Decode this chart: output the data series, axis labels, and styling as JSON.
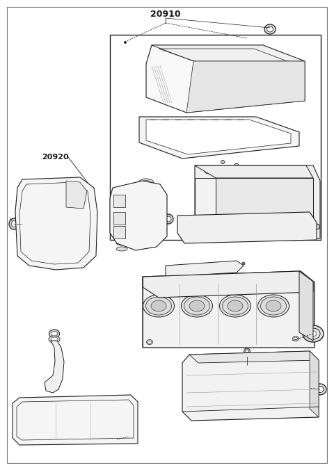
{
  "title": "20910",
  "label_20920": "20920",
  "bg_color": "#ffffff",
  "line_color": "#1a1a1a",
  "fig_width": 4.8,
  "fig_height": 6.76,
  "dpi": 100
}
